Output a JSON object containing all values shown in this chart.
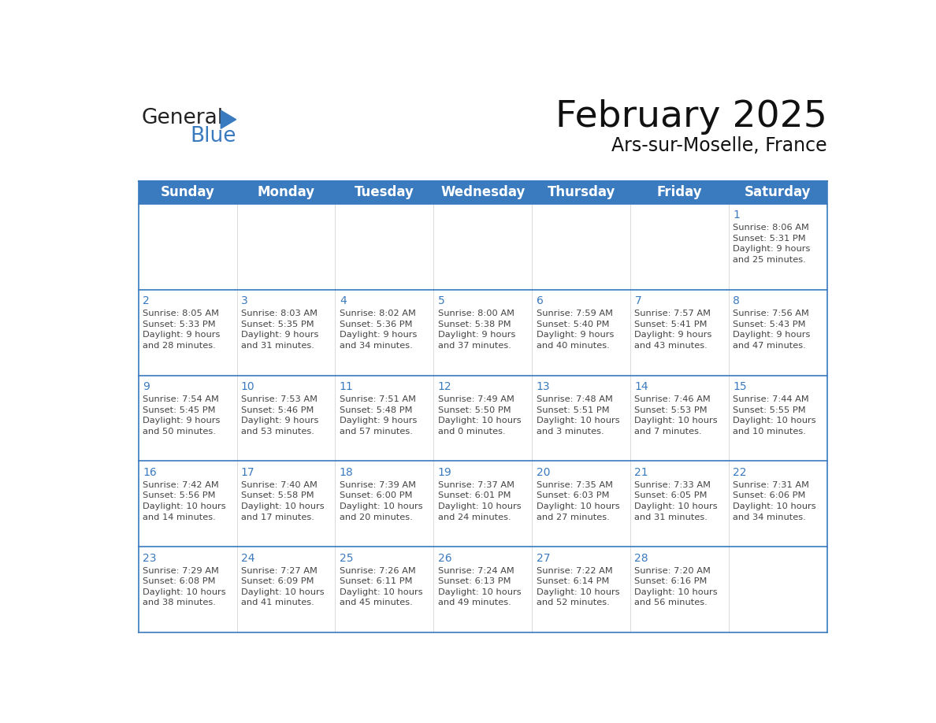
{
  "title": "February 2025",
  "subtitle": "Ars-sur-Moselle, France",
  "header_color": "#3a7abf",
  "header_text_color": "#ffffff",
  "cell_bg_color_light": "#f2f2f2",
  "cell_bg_color_white": "#ffffff",
  "cell_text_color": "#444444",
  "day_number_color": "#3a7abf",
  "border_color": "#3a7abf",
  "row_line_color": "#3a7abf",
  "days_of_week": [
    "Sunday",
    "Monday",
    "Tuesday",
    "Wednesday",
    "Thursday",
    "Friday",
    "Saturday"
  ],
  "weeks": [
    [
      {
        "day": 0,
        "info": ""
      },
      {
        "day": 0,
        "info": ""
      },
      {
        "day": 0,
        "info": ""
      },
      {
        "day": 0,
        "info": ""
      },
      {
        "day": 0,
        "info": ""
      },
      {
        "day": 0,
        "info": ""
      },
      {
        "day": 1,
        "info": "Sunrise: 8:06 AM\nSunset: 5:31 PM\nDaylight: 9 hours\nand 25 minutes."
      }
    ],
    [
      {
        "day": 2,
        "info": "Sunrise: 8:05 AM\nSunset: 5:33 PM\nDaylight: 9 hours\nand 28 minutes."
      },
      {
        "day": 3,
        "info": "Sunrise: 8:03 AM\nSunset: 5:35 PM\nDaylight: 9 hours\nand 31 minutes."
      },
      {
        "day": 4,
        "info": "Sunrise: 8:02 AM\nSunset: 5:36 PM\nDaylight: 9 hours\nand 34 minutes."
      },
      {
        "day": 5,
        "info": "Sunrise: 8:00 AM\nSunset: 5:38 PM\nDaylight: 9 hours\nand 37 minutes."
      },
      {
        "day": 6,
        "info": "Sunrise: 7:59 AM\nSunset: 5:40 PM\nDaylight: 9 hours\nand 40 minutes."
      },
      {
        "day": 7,
        "info": "Sunrise: 7:57 AM\nSunset: 5:41 PM\nDaylight: 9 hours\nand 43 minutes."
      },
      {
        "day": 8,
        "info": "Sunrise: 7:56 AM\nSunset: 5:43 PM\nDaylight: 9 hours\nand 47 minutes."
      }
    ],
    [
      {
        "day": 9,
        "info": "Sunrise: 7:54 AM\nSunset: 5:45 PM\nDaylight: 9 hours\nand 50 minutes."
      },
      {
        "day": 10,
        "info": "Sunrise: 7:53 AM\nSunset: 5:46 PM\nDaylight: 9 hours\nand 53 minutes."
      },
      {
        "day": 11,
        "info": "Sunrise: 7:51 AM\nSunset: 5:48 PM\nDaylight: 9 hours\nand 57 minutes."
      },
      {
        "day": 12,
        "info": "Sunrise: 7:49 AM\nSunset: 5:50 PM\nDaylight: 10 hours\nand 0 minutes."
      },
      {
        "day": 13,
        "info": "Sunrise: 7:48 AM\nSunset: 5:51 PM\nDaylight: 10 hours\nand 3 minutes."
      },
      {
        "day": 14,
        "info": "Sunrise: 7:46 AM\nSunset: 5:53 PM\nDaylight: 10 hours\nand 7 minutes."
      },
      {
        "day": 15,
        "info": "Sunrise: 7:44 AM\nSunset: 5:55 PM\nDaylight: 10 hours\nand 10 minutes."
      }
    ],
    [
      {
        "day": 16,
        "info": "Sunrise: 7:42 AM\nSunset: 5:56 PM\nDaylight: 10 hours\nand 14 minutes."
      },
      {
        "day": 17,
        "info": "Sunrise: 7:40 AM\nSunset: 5:58 PM\nDaylight: 10 hours\nand 17 minutes."
      },
      {
        "day": 18,
        "info": "Sunrise: 7:39 AM\nSunset: 6:00 PM\nDaylight: 10 hours\nand 20 minutes."
      },
      {
        "day": 19,
        "info": "Sunrise: 7:37 AM\nSunset: 6:01 PM\nDaylight: 10 hours\nand 24 minutes."
      },
      {
        "day": 20,
        "info": "Sunrise: 7:35 AM\nSunset: 6:03 PM\nDaylight: 10 hours\nand 27 minutes."
      },
      {
        "day": 21,
        "info": "Sunrise: 7:33 AM\nSunset: 6:05 PM\nDaylight: 10 hours\nand 31 minutes."
      },
      {
        "day": 22,
        "info": "Sunrise: 7:31 AM\nSunset: 6:06 PM\nDaylight: 10 hours\nand 34 minutes."
      }
    ],
    [
      {
        "day": 23,
        "info": "Sunrise: 7:29 AM\nSunset: 6:08 PM\nDaylight: 10 hours\nand 38 minutes."
      },
      {
        "day": 24,
        "info": "Sunrise: 7:27 AM\nSunset: 6:09 PM\nDaylight: 10 hours\nand 41 minutes."
      },
      {
        "day": 25,
        "info": "Sunrise: 7:26 AM\nSunset: 6:11 PM\nDaylight: 10 hours\nand 45 minutes."
      },
      {
        "day": 26,
        "info": "Sunrise: 7:24 AM\nSunset: 6:13 PM\nDaylight: 10 hours\nand 49 minutes."
      },
      {
        "day": 27,
        "info": "Sunrise: 7:22 AM\nSunset: 6:14 PM\nDaylight: 10 hours\nand 52 minutes."
      },
      {
        "day": 28,
        "info": "Sunrise: 7:20 AM\nSunset: 6:16 PM\nDaylight: 10 hours\nand 56 minutes."
      },
      {
        "day": 0,
        "info": ""
      }
    ]
  ],
  "logo_general_fontsize": 19,
  "logo_blue_fontsize": 19,
  "logo_triangle_color": "#3a7abf",
  "title_fontsize": 34,
  "subtitle_fontsize": 17,
  "header_fontsize": 12,
  "day_number_fontsize": 10,
  "info_fontsize": 8.2
}
